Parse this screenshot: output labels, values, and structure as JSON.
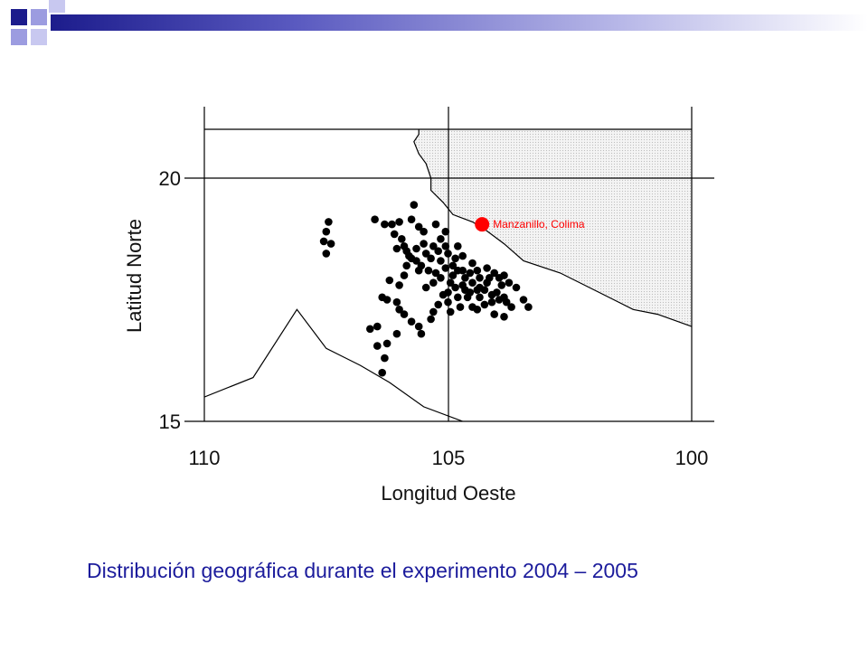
{
  "slide": {
    "caption": "Distribución geográfica durante el experimento 2004 – 2005",
    "caption_color": "#1c1c9c",
    "decoration_colors": [
      "#1c1c8c",
      "#9c9ce0",
      "#c8c8f0"
    ]
  },
  "chart_data": {
    "type": "scatter",
    "title": "",
    "xlabel": "Longitud Oeste",
    "ylabel": "Latitud Norte",
    "xlim": [
      110,
      100
    ],
    "ylim": [
      15,
      21
    ],
    "x_ticks": [
      110,
      105,
      100
    ],
    "y_ticks": [
      15,
      20
    ],
    "grid": true,
    "land_fill": "dotted-grey",
    "point_color": "#000000",
    "highlight": {
      "name": "Manzanillo, Colima",
      "lon": 104.3,
      "lat": 19.05,
      "color": "#ff0000"
    },
    "coastline": [
      [
        105.6,
        21.0
      ],
      [
        105.6,
        20.9
      ],
      [
        105.7,
        20.75
      ],
      [
        105.6,
        20.5
      ],
      [
        105.45,
        20.3
      ],
      [
        105.35,
        20.0
      ],
      [
        105.35,
        19.75
      ],
      [
        105.1,
        19.5
      ],
      [
        104.9,
        19.25
      ],
      [
        104.5,
        19.1
      ],
      [
        104.25,
        18.95
      ],
      [
        103.85,
        18.65
      ],
      [
        103.45,
        18.3
      ],
      [
        102.7,
        18.05
      ],
      [
        102.1,
        17.75
      ],
      [
        101.6,
        17.5
      ],
      [
        101.2,
        17.3
      ],
      [
        100.7,
        17.2
      ],
      [
        100.0,
        16.95
      ]
    ],
    "inland_line": [
      [
        110.0,
        15.5
      ],
      [
        109.0,
        15.9
      ],
      [
        108.1,
        17.3
      ],
      [
        107.5,
        16.5
      ],
      [
        106.8,
        16.15
      ],
      [
        106.2,
        15.8
      ],
      [
        105.5,
        15.3
      ],
      [
        104.7,
        15.0
      ]
    ],
    "points": [
      [
        105.7,
        19.45
      ],
      [
        106.3,
        19.05
      ],
      [
        106.15,
        19.05
      ],
      [
        105.75,
        19.15
      ],
      [
        105.6,
        19.0
      ],
      [
        105.25,
        19.05
      ],
      [
        106.0,
        19.1
      ],
      [
        106.5,
        19.15
      ],
      [
        107.45,
        19.1
      ],
      [
        107.5,
        18.9
      ],
      [
        107.55,
        18.7
      ],
      [
        107.4,
        18.65
      ],
      [
        107.5,
        18.45
      ],
      [
        105.5,
        18.9
      ],
      [
        105.15,
        18.75
      ],
      [
        105.05,
        18.6
      ],
      [
        104.8,
        18.6
      ],
      [
        106.1,
        18.85
      ],
      [
        105.95,
        18.75
      ],
      [
        106.05,
        18.55
      ],
      [
        105.65,
        18.55
      ],
      [
        105.45,
        18.45
      ],
      [
        105.35,
        18.35
      ],
      [
        105.15,
        18.3
      ],
      [
        105.05,
        18.15
      ],
      [
        104.9,
        18.2
      ],
      [
        104.8,
        18.1
      ],
      [
        104.7,
        18.1
      ],
      [
        104.65,
        17.95
      ],
      [
        104.5,
        17.85
      ],
      [
        104.35,
        17.75
      ],
      [
        104.25,
        17.7
      ],
      [
        104.1,
        17.6
      ],
      [
        103.95,
        17.5
      ],
      [
        103.85,
        17.55
      ],
      [
        103.8,
        17.45
      ],
      [
        104.15,
        17.95
      ],
      [
        103.9,
        17.8
      ],
      [
        104.55,
        18.05
      ],
      [
        104.6,
        17.55
      ],
      [
        104.85,
        17.75
      ],
      [
        104.95,
        17.85
      ],
      [
        105.0,
        17.45
      ],
      [
        104.75,
        17.35
      ],
      [
        105.1,
        17.6
      ],
      [
        105.2,
        17.4
      ],
      [
        105.3,
        17.25
      ],
      [
        105.35,
        17.1
      ],
      [
        104.95,
        17.25
      ],
      [
        104.5,
        17.35
      ],
      [
        104.4,
        17.3
      ],
      [
        104.25,
        17.4
      ],
      [
        104.05,
        17.2
      ],
      [
        103.85,
        17.15
      ],
      [
        103.7,
        17.35
      ],
      [
        103.45,
        17.5
      ],
      [
        103.35,
        17.35
      ],
      [
        103.6,
        17.75
      ],
      [
        103.85,
        18.0
      ],
      [
        105.85,
        18.2
      ],
      [
        105.9,
        18.0
      ],
      [
        106.0,
        17.8
      ],
      [
        106.2,
        17.9
      ],
      [
        106.35,
        17.55
      ],
      [
        106.25,
        17.5
      ],
      [
        106.05,
        17.45
      ],
      [
        106.0,
        17.3
      ],
      [
        105.9,
        17.2
      ],
      [
        105.75,
        17.05
      ],
      [
        105.6,
        16.95
      ],
      [
        105.55,
        16.8
      ],
      [
        106.05,
        16.8
      ],
      [
        106.25,
        16.6
      ],
      [
        106.45,
        16.55
      ],
      [
        106.6,
        16.9
      ],
      [
        106.45,
        16.95
      ],
      [
        106.3,
        16.3
      ],
      [
        106.35,
        16.0
      ],
      [
        105.45,
        17.75
      ],
      [
        105.3,
        17.85
      ],
      [
        105.25,
        18.05
      ],
      [
        105.4,
        18.1
      ],
      [
        105.55,
        18.2
      ],
      [
        105.65,
        18.3
      ],
      [
        105.8,
        18.4
      ],
      [
        105.9,
        18.6
      ],
      [
        105.5,
        18.65
      ],
      [
        105.3,
        18.6
      ],
      [
        105.0,
        18.45
      ],
      [
        104.85,
        18.35
      ],
      [
        104.7,
        18.4
      ],
      [
        104.5,
        18.25
      ],
      [
        104.4,
        18.1
      ],
      [
        104.35,
        17.95
      ],
      [
        104.2,
        18.15
      ],
      [
        104.05,
        18.05
      ],
      [
        103.95,
        17.95
      ],
      [
        103.75,
        17.85
      ],
      [
        104.7,
        17.8
      ],
      [
        104.55,
        17.65
      ],
      [
        104.35,
        17.55
      ],
      [
        104.8,
        17.55
      ],
      [
        104.9,
        18.0
      ],
      [
        105.15,
        17.95
      ],
      [
        105.6,
        18.1
      ],
      [
        105.75,
        18.35
      ],
      [
        105.85,
        18.5
      ],
      [
        105.05,
        18.9
      ],
      [
        105.2,
        18.5
      ],
      [
        104.65,
        17.7
      ],
      [
        104.4,
        17.7
      ],
      [
        104.2,
        17.85
      ],
      [
        104.0,
        17.65
      ],
      [
        104.1,
        17.45
      ],
      [
        105.0,
        17.65
      ]
    ]
  }
}
